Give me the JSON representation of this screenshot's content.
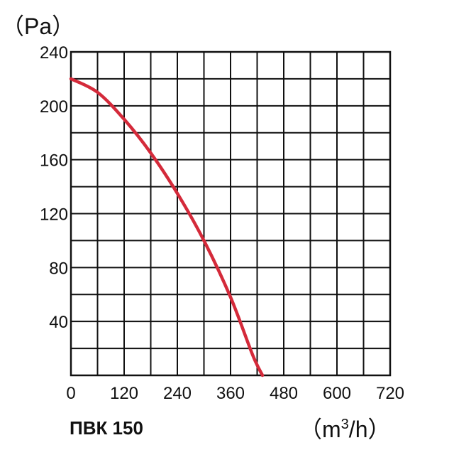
{
  "chart_data": {
    "type": "line",
    "title": "",
    "model_label": "ПВК 150",
    "y_unit": "（Pa）",
    "x_unit_prefix": "（m",
    "x_unit_sup": "3",
    "x_unit_suffix": "/h）",
    "xlim": [
      0,
      720
    ],
    "ylim": [
      0,
      240
    ],
    "x_ticks": [
      0,
      120,
      240,
      360,
      480,
      600,
      720
    ],
    "x_tick_labels": [
      "0",
      "120",
      "240",
      "360",
      "480",
      "600",
      "720"
    ],
    "y_ticks": [
      40,
      80,
      120,
      160,
      200,
      240
    ],
    "y_tick_labels": [
      "40",
      "80",
      "120",
      "160",
      "200",
      "240"
    ],
    "grid": true,
    "grid_x_step": 60,
    "grid_y_step": 20,
    "colors": {
      "curve": "#d42a3a",
      "grid": "#111111"
    },
    "series": [
      {
        "x": [
          0,
          60,
          120,
          180,
          240,
          300,
          360,
          410,
          432
        ],
        "y": [
          220,
          210,
          190,
          165,
          135,
          100,
          58,
          15,
          0
        ]
      }
    ]
  }
}
